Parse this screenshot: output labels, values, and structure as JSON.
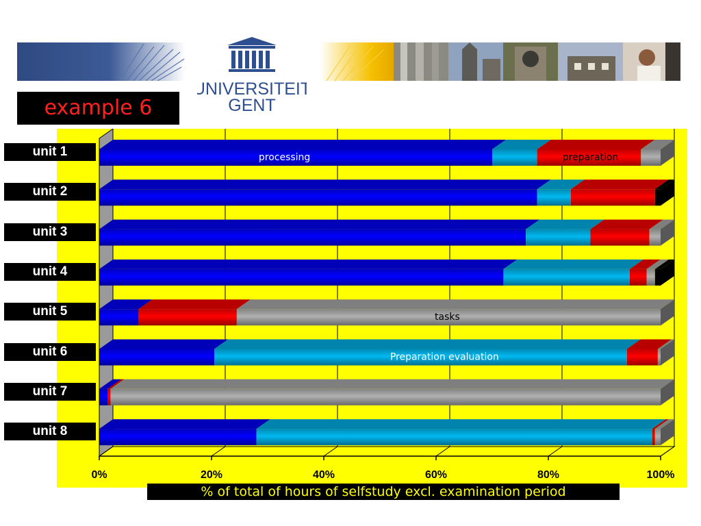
{
  "slide": {
    "title": "example 6",
    "logo_line1": "UNIVERSITEIT",
    "logo_line2": "GENT"
  },
  "colors": {
    "processing": "#0000ff",
    "preparation_evaluation": "#00b8f0",
    "preparation": "#ff0000",
    "tasks": "#b0b0b0",
    "other": "#000000",
    "plot_background": "#ffff00",
    "title_text": "#ff2020",
    "caption_text": "#ffff00"
  },
  "chart_data": {
    "type": "bar",
    "orientation": "horizontal",
    "stacked": "percent",
    "style": "3d",
    "categories": [
      "unit 1",
      "unit 2",
      "unit 3",
      "unit 4",
      "unit 5",
      "unit 6",
      "unit 7",
      "unit 8"
    ],
    "series": [
      {
        "key": "processing",
        "values": [
          70,
          78,
          76,
          72,
          7,
          20.5,
          1.5,
          28
        ]
      },
      {
        "key": "preparation_evaluation",
        "values": [
          8,
          6,
          11.5,
          22.5,
          0,
          73.5,
          0,
          70.5
        ]
      },
      {
        "key": "preparation",
        "values": [
          18.5,
          15,
          10.5,
          3,
          17.5,
          5.5,
          0.5,
          0.5
        ]
      },
      {
        "key": "tasks",
        "values": [
          3.5,
          0,
          2,
          1.5,
          75.5,
          0.5,
          98,
          1
        ]
      },
      {
        "key": "other",
        "values": [
          0,
          1,
          0,
          1,
          0,
          0,
          0,
          0
        ]
      }
    ],
    "xlim": [
      0,
      100
    ],
    "xticks": [
      "0%",
      "20%",
      "40%",
      "60%",
      "80%",
      "100%"
    ],
    "xlabel": "% of total of hours of selfstudy excl. examination period",
    "grid": true,
    "annotations": [
      {
        "text": "processing",
        "unit": 0,
        "x": 33
      },
      {
        "text": "preparation",
        "unit": 0,
        "x": 87.5
      },
      {
        "text": "tasks",
        "unit": 4,
        "x": 62
      },
      {
        "text": "Preparation evaluation",
        "unit": 5,
        "x": 61.5
      }
    ]
  }
}
